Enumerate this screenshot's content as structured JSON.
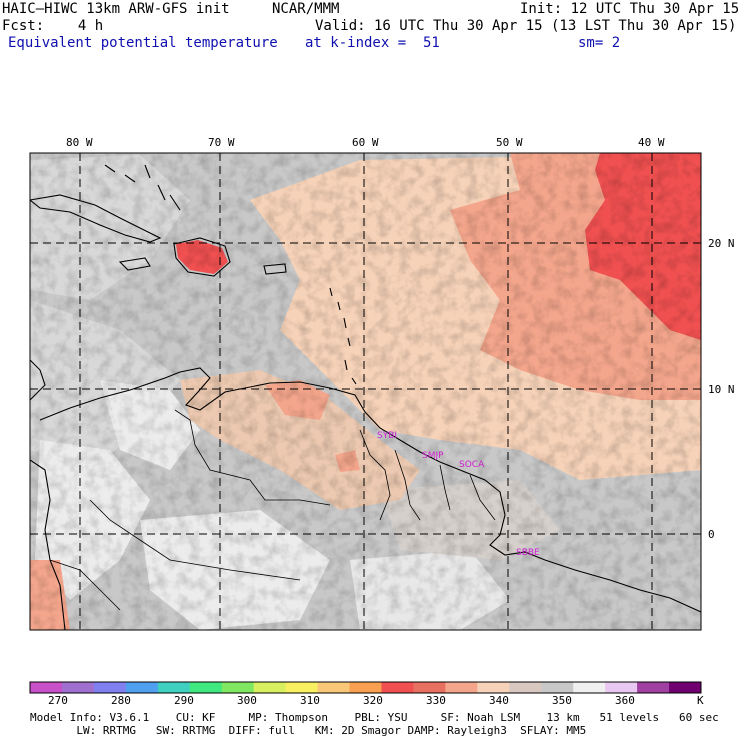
{
  "header": {
    "model": "HAIC–HIWC 13km ARW-GFS init",
    "org": "NCAR/MMM",
    "init": "Init: 12 UTC Thu 30 Apr 15",
    "fcst": "Fcst:    4 h",
    "valid": "Valid: 16 UTC Thu 30 Apr 15 (13 LST Thu 30 Apr 15)",
    "field": "Equivalent potential temperature",
    "level": "at k-index =  51",
    "smooth": "sm= 2"
  },
  "map": {
    "lon_labels": [
      "80 W",
      "70 W",
      "60 W",
      "50 W",
      "40 W"
    ],
    "lat_labels": [
      "20 N",
      "10 N",
      "0"
    ],
    "stations": [
      "SYBI",
      "SMJP",
      "SOCA",
      "SBBE"
    ],
    "colors": {
      "base_gray": "#c8c8c8",
      "light_gray": "#d8d8d8",
      "white_ish": "#f0f0f0",
      "tan": "#f6d2b8",
      "salmon": "#f4a68c",
      "red": "#f05050",
      "station": "#d020d0"
    }
  },
  "colorbar": {
    "labels": [
      "270",
      "280",
      "290",
      "300",
      "310",
      "320",
      "330",
      "340",
      "350",
      "360",
      "K"
    ],
    "colors": [
      "#c850c8",
      "#a070d0",
      "#8080f0",
      "#50a0f0",
      "#40d0c0",
      "#40e880",
      "#80e860",
      "#d8f060",
      "#f8f060",
      "#f8c878",
      "#f8a050",
      "#f05050",
      "#e87060",
      "#f4a68c",
      "#f6d2b8",
      "#d8c8c0",
      "#c8c8c8",
      "#f0f0f0",
      "#e8c8f0",
      "#a040a0",
      "#700070"
    ]
  },
  "footer": {
    "line1": "Model Info: V3.6.1    CU: KF     MP: Thompson    PBL: YSU     SF: Noah LSM    13 km   51 levels   60 sec",
    "line2": "       LW: RRTMG   SW: RRTMG  DIFF: full   KM: 2D Smagor DAMP: Rayleigh3  SFLAY: MM5"
  }
}
